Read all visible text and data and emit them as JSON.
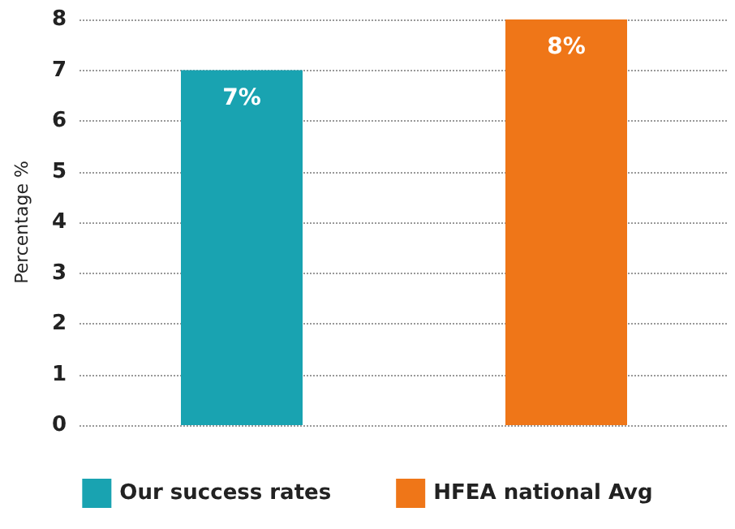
{
  "chart_data": {
    "type": "bar",
    "ylabel": "Percentage %",
    "categories": [
      null,
      null
    ],
    "series": [
      {
        "name": "Our success rates",
        "color": "#19a3b1",
        "values": [
          7,
          null
        ],
        "value_labels": [
          "7%",
          null
        ]
      },
      {
        "name": "HFEA national Avg",
        "color": "#ef7618",
        "values": [
          null,
          8
        ],
        "value_labels": [
          null,
          "8%"
        ]
      }
    ],
    "ylim": [
      0,
      8
    ],
    "yticks": [
      0,
      1,
      2,
      3,
      4,
      5,
      6,
      7,
      8
    ],
    "grid": "y",
    "legend": "bottom"
  }
}
